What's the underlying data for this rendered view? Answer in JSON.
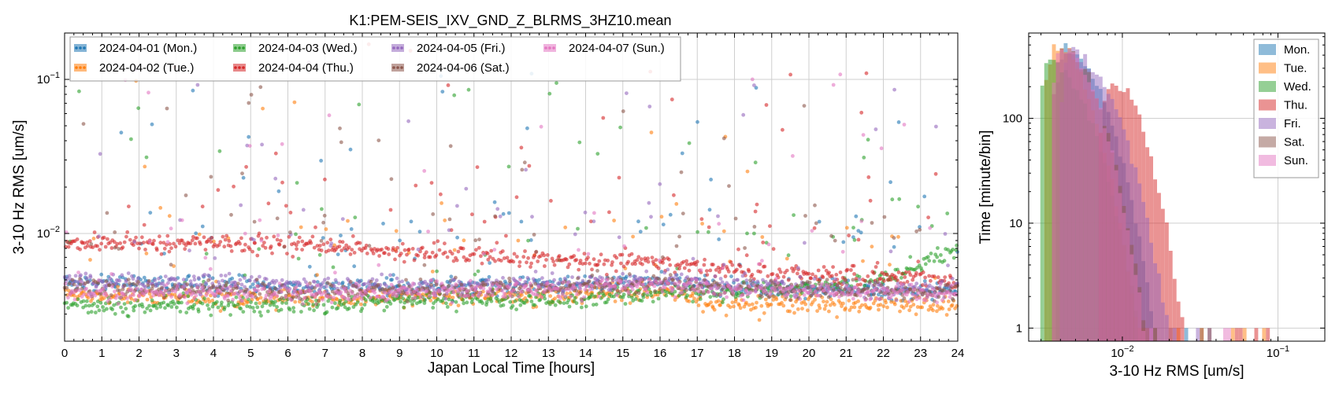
{
  "chart_data": [
    {
      "type": "scatter",
      "title": "K1:PEM-SEIS_IXV_GND_Z_BLRMS_3HZ10.mean",
      "xlabel": "Japan Local Time [hours]",
      "ylabel": "3-10 Hz RMS [um/s]",
      "xlim": [
        0,
        24
      ],
      "ylim": [
        0.002,
        0.2
      ],
      "yscale": "log",
      "grid": true,
      "legend_position": "top-left",
      "x_ticks": [
        "0",
        "1",
        "2",
        "3",
        "4",
        "5",
        "6",
        "7",
        "8",
        "9",
        "10",
        "11",
        "12",
        "13",
        "14",
        "15",
        "16",
        "17",
        "18",
        "19",
        "20",
        "21",
        "22",
        "23",
        "24"
      ],
      "y_ticks": [
        {
          "value": 0.01,
          "base": "10",
          "exp": "−2"
        },
        {
          "value": 0.1,
          "base": "10",
          "exp": "−1"
        }
      ],
      "series": [
        {
          "name": "2024-04-01 (Mon.)",
          "color": "#1f77b4",
          "x": [
            0,
            2,
            4,
            6,
            8,
            10,
            12,
            14,
            16,
            17,
            18,
            20,
            22,
            24
          ],
          "values": [
            0.0048,
            0.0047,
            0.0046,
            0.0045,
            0.0045,
            0.0045,
            0.0046,
            0.0047,
            0.0048,
            0.0046,
            0.0045,
            0.0043,
            0.0042,
            0.0042
          ]
        },
        {
          "name": "2024-04-02 (Tue.)",
          "color": "#ff7f0e",
          "x": [
            0,
            2,
            4,
            6,
            8,
            10,
            12,
            14,
            16,
            17,
            18,
            20,
            22,
            24
          ],
          "values": [
            0.004,
            0.0039,
            0.0038,
            0.0038,
            0.0038,
            0.0039,
            0.0039,
            0.004,
            0.0042,
            0.0036,
            0.0035,
            0.0035,
            0.0034,
            0.0034
          ]
        },
        {
          "name": "2024-04-03 (Wed.)",
          "color": "#2ca02c",
          "x": [
            0,
            2,
            4,
            6,
            8,
            10,
            12,
            14,
            16,
            17,
            18,
            20,
            22,
            23,
            24
          ],
          "values": [
            0.0035,
            0.0034,
            0.0034,
            0.0034,
            0.0035,
            0.0037,
            0.0036,
            0.0037,
            0.0042,
            0.0041,
            0.0042,
            0.0044,
            0.005,
            0.0062,
            0.008
          ]
        },
        {
          "name": "2024-04-04 (Thu.)",
          "color": "#d62728",
          "x": [
            0,
            2,
            4,
            6,
            8,
            10,
            12,
            14,
            16,
            18,
            20,
            22,
            24
          ],
          "values": [
            0.0085,
            0.0088,
            0.0086,
            0.0085,
            0.008,
            0.0074,
            0.0068,
            0.0066,
            0.0064,
            0.0058,
            0.0054,
            0.0052,
            0.005
          ]
        },
        {
          "name": "2024-04-05 (Fri.)",
          "color": "#9467bd",
          "x": [
            0,
            2,
            4,
            6,
            8,
            10,
            12,
            14,
            16,
            18,
            20,
            22,
            24
          ],
          "values": [
            0.005,
            0.0049,
            0.0048,
            0.0047,
            0.0046,
            0.0046,
            0.0047,
            0.0048,
            0.005,
            0.0047,
            0.0045,
            0.0044,
            0.0044
          ]
        },
        {
          "name": "2024-04-06 (Sat.)",
          "color": "#8c564b",
          "x": [
            0,
            2,
            4,
            6,
            8,
            10,
            12,
            14,
            16,
            18,
            20,
            22,
            24
          ],
          "values": [
            0.0044,
            0.0043,
            0.0043,
            0.0042,
            0.0042,
            0.0043,
            0.0044,
            0.0045,
            0.0047,
            0.0044,
            0.0043,
            0.0042,
            0.0042
          ]
        },
        {
          "name": "2024-04-07 (Sun.)",
          "color": "#e377c2",
          "x": [
            0,
            2,
            4,
            6,
            8,
            10,
            12,
            14,
            16,
            18,
            20,
            22,
            24
          ],
          "values": [
            0.0042,
            0.0041,
            0.0041,
            0.0041,
            0.0041,
            0.0042,
            0.0043,
            0.0044,
            0.0046,
            0.0043,
            0.0042,
            0.0041,
            0.0041
          ]
        }
      ]
    },
    {
      "type": "bar",
      "title": "",
      "xlabel": "3-10 Hz RMS [um/s]",
      "ylabel": "Time [minute/bin]",
      "xscale": "log",
      "yscale": "log",
      "xlim": [
        0.0025,
        0.2
      ],
      "ylim": [
        0.75,
        650
      ],
      "grid": true,
      "legend_position": "top-right",
      "x_ticks": [
        {
          "value": 0.01,
          "base": "10",
          "exp": "−2"
        },
        {
          "value": 0.1,
          "base": "10",
          "exp": "−1"
        }
      ],
      "y_ticks": [
        {
          "value": 1,
          "label": "1"
        },
        {
          "value": 10,
          "label": "10"
        },
        {
          "value": 100,
          "label": "100"
        }
      ],
      "series": [
        {
          "name": "Mon.",
          "color": "#1f77b4",
          "peak": 0.0044,
          "peak_value": 470,
          "upper_width": 0.16,
          "tail_max": 0.035
        },
        {
          "name": "Tue.",
          "color": "#ff7f0e",
          "peak": 0.0037,
          "peak_value": 500,
          "upper_width": 0.15,
          "tail_max": 0.11
        },
        {
          "name": "Wed.",
          "color": "#2ca02c",
          "peak": 0.0034,
          "peak_value": 330,
          "upper_width": 0.17,
          "tail_max": 0.03
        },
        {
          "name": "Thu.",
          "color": "#d62728",
          "peak": 0.0085,
          "peak_value": 230,
          "upper_width": 0.14,
          "tail_max": 0.12
        },
        {
          "name": "Fri.",
          "color": "#9467bd",
          "peak": 0.0047,
          "peak_value": 420,
          "upper_width": 0.18,
          "tail_max": 0.06
        },
        {
          "name": "Sat.",
          "color": "#8c564b",
          "peak": 0.0042,
          "peak_value": 450,
          "upper_width": 0.15,
          "tail_max": 0.04
        },
        {
          "name": "Sun.",
          "color": "#e377c2",
          "peak": 0.0041,
          "peak_value": 470,
          "upper_width": 0.15,
          "tail_max": 0.05
        }
      ]
    }
  ]
}
